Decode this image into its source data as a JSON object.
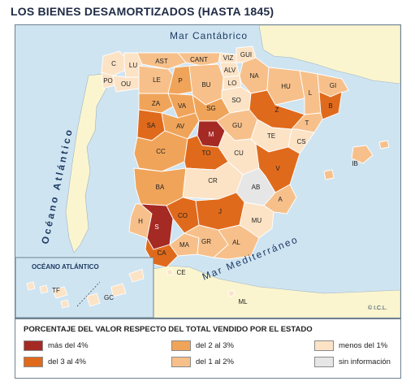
{
  "title": "LOS BIENES DESAMORTIZADOS (HASTA 1845)",
  "map": {
    "sea_labels": {
      "cantabrico": "Mar Cantábrico",
      "atlantico": "Océano Atlántico",
      "mediterraneo": "Mar Mediterráneo",
      "atlantico_inset": "OCÉANO ATLÁNTICO"
    },
    "copyright": "© I.C.L.",
    "colors": {
      "cat1": "#a52a24",
      "cat2": "#e06a1c",
      "cat3": "#f0a45a",
      "cat4": "#f7c08a",
      "cat5": "#fce3c6",
      "nodata": "#e6e6e6",
      "sea": "#cfe4f1",
      "foreign_land": "#fbf5cf",
      "border": "#ffffff"
    },
    "provinces": [
      {
        "code": "C",
        "category": "cat5"
      },
      {
        "code": "LU",
        "category": "cat5"
      },
      {
        "code": "PO",
        "category": "cat5"
      },
      {
        "code": "OU",
        "category": "cat5"
      },
      {
        "code": "AST",
        "category": "cat4"
      },
      {
        "code": "CANT",
        "category": "cat4"
      },
      {
        "code": "VIZ",
        "category": "cat5"
      },
      {
        "code": "GUI",
        "category": "cat5"
      },
      {
        "code": "ALV",
        "category": "cat5"
      },
      {
        "code": "NA",
        "category": "cat4"
      },
      {
        "code": "LE",
        "category": "cat4"
      },
      {
        "code": "P",
        "category": "cat3"
      },
      {
        "code": "BU",
        "category": "cat4"
      },
      {
        "code": "LO",
        "category": "cat5"
      },
      {
        "code": "HU",
        "category": "cat4"
      },
      {
        "code": "GI",
        "category": "cat4"
      },
      {
        "code": "B",
        "category": "cat2"
      },
      {
        "code": "L",
        "category": "cat4"
      },
      {
        "code": "ZA",
        "category": "cat3"
      },
      {
        "code": "VA",
        "category": "cat3"
      },
      {
        "code": "SO",
        "category": "cat5"
      },
      {
        "code": "Z",
        "category": "cat2"
      },
      {
        "code": "SG",
        "category": "cat3"
      },
      {
        "code": "T",
        "category": "cat4"
      },
      {
        "code": "SA",
        "category": "cat2"
      },
      {
        "code": "AV",
        "category": "cat3"
      },
      {
        "code": "M",
        "category": "cat1"
      },
      {
        "code": "GU",
        "category": "cat4"
      },
      {
        "code": "TE",
        "category": "cat5"
      },
      {
        "code": "CS",
        "category": "cat5"
      },
      {
        "code": "CC",
        "category": "cat3"
      },
      {
        "code": "TO",
        "category": "cat2"
      },
      {
        "code": "CU",
        "category": "cat5"
      },
      {
        "code": "V",
        "category": "cat2"
      },
      {
        "code": "BA",
        "category": "cat3"
      },
      {
        "code": "CR",
        "category": "cat5"
      },
      {
        "code": "AB",
        "category": "nodata"
      },
      {
        "code": "A",
        "category": "cat4"
      },
      {
        "code": "H",
        "category": "cat4"
      },
      {
        "code": "S",
        "category": "cat1"
      },
      {
        "code": "CO",
        "category": "cat2"
      },
      {
        "code": "J",
        "category": "cat2"
      },
      {
        "code": "MU",
        "category": "cat5"
      },
      {
        "code": "CA",
        "category": "cat2"
      },
      {
        "code": "MA",
        "category": "cat4"
      },
      {
        "code": "GR",
        "category": "cat4"
      },
      {
        "code": "AL",
        "category": "cat4"
      },
      {
        "code": "IB",
        "category": "cat4"
      },
      {
        "code": "CE",
        "category": "cat5"
      },
      {
        "code": "ML",
        "category": "cat5"
      },
      {
        "code": "TF",
        "category": "cat5"
      },
      {
        "code": "GC",
        "category": "cat5"
      }
    ]
  },
  "legend": {
    "title": "PORCENTAJE DEL VALOR RESPECTO DEL TOTAL VENDIDO POR EL ESTADO",
    "items": [
      {
        "label": "más del 4%",
        "color": "#a52a24"
      },
      {
        "label": "del 3 al 4%",
        "color": "#e06a1c"
      },
      {
        "label": "del 2 al 3%",
        "color": "#f0a45a"
      },
      {
        "label": "del 1 al 2%",
        "color": "#f7c08a"
      },
      {
        "label": "menos del 1%",
        "color": "#fce3c6"
      },
      {
        "label": "sin información",
        "color": "#e6e6e6"
      }
    ]
  }
}
